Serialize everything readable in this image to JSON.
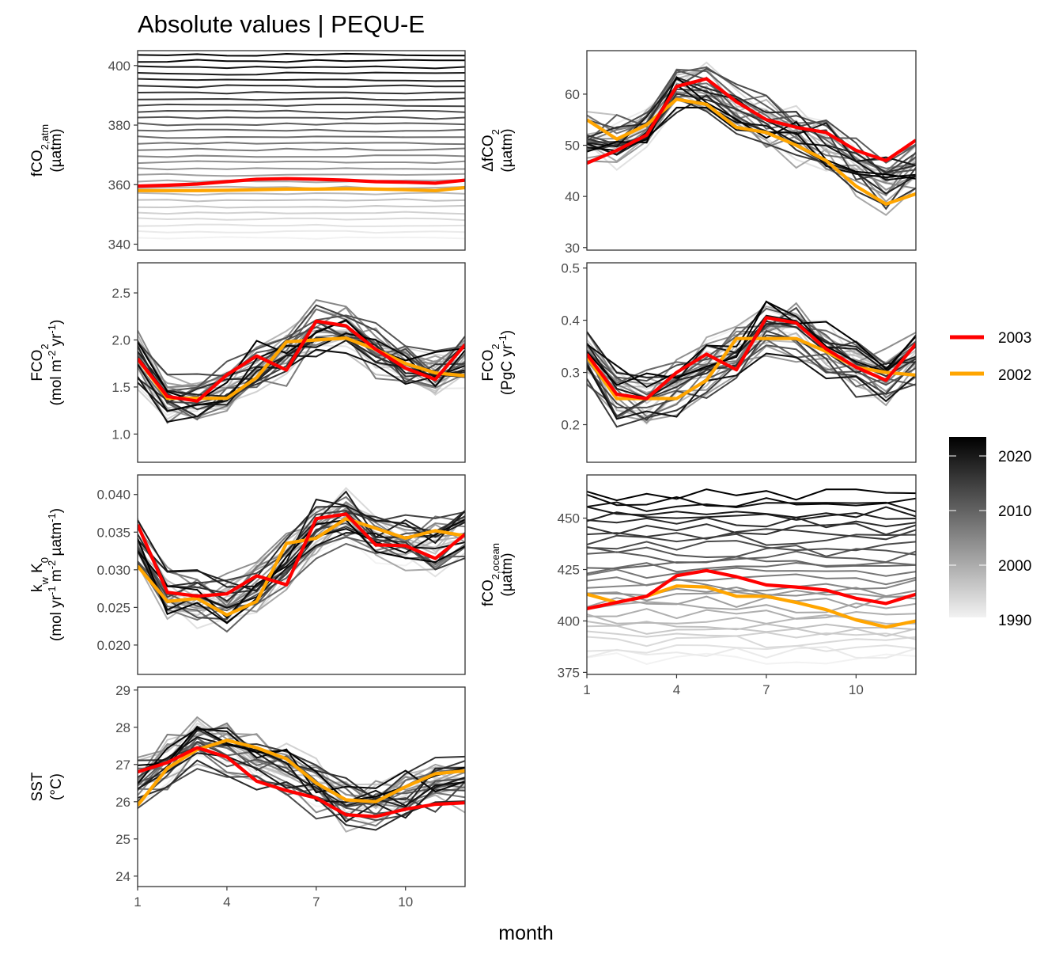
{
  "title": "Absolute values | PEQU-E",
  "xlabel": "month",
  "legend": {
    "highlight": [
      {
        "label": "2003",
        "color": "#ff0000"
      },
      {
        "label": "2002",
        "color": "#ffa500"
      }
    ],
    "colorbar": {
      "ticks": [
        "2020",
        "2010",
        "2000",
        "1990"
      ],
      "range": [
        1990,
        2022
      ],
      "low_color": "#f2f2f2",
      "high_color": "#000000"
    }
  },
  "chart_data": [
    {
      "id": "fco2atm",
      "type": "line",
      "ylabel": [
        "fCO2,atm",
        "(µatm)"
      ],
      "ylim": [
        338,
        405
      ],
      "yticks": [
        340,
        360,
        380,
        400
      ],
      "ytick_labels": [
        "340",
        "360",
        "380",
        "400"
      ],
      "xlim": [
        1,
        12
      ],
      "xticks": [
        1,
        4,
        7,
        10
      ],
      "show_xticks": false,
      "grid": false,
      "series": [
        {
          "name": "2003",
          "values": [
            359.5,
            359.8,
            360.2,
            361.0,
            361.8,
            362.0,
            361.8,
            361.5,
            361.0,
            360.8,
            360.5,
            361.5
          ]
        },
        {
          "name": "2002",
          "values": [
            358.0,
            358.0,
            358.0,
            358.1,
            358.3,
            358.5,
            358.5,
            358.6,
            358.5,
            358.3,
            358.0,
            359.0
          ]
        }
      ]
    },
    {
      "id": "dfco2",
      "type": "line",
      "ylabel": [
        "ΔfCO2",
        "(µatm)"
      ],
      "ylim": [
        29.5,
        68.5
      ],
      "yticks": [
        30,
        40,
        50,
        60
      ],
      "ytick_labels": [
        "30",
        "40",
        "50",
        "60"
      ],
      "xlim": [
        1,
        12
      ],
      "xticks": [
        1,
        4,
        7,
        10
      ],
      "show_xticks": false,
      "grid": false,
      "series": [
        {
          "name": "2003",
          "values": [
            46.5,
            49.0,
            52.0,
            61.5,
            63.0,
            58.5,
            55.0,
            53.5,
            52.5,
            49.0,
            47.0,
            51.0
          ]
        },
        {
          "name": "2002",
          "values": [
            55.0,
            51.2,
            54.0,
            59.0,
            58.0,
            53.5,
            52.5,
            50.0,
            47.0,
            42.0,
            38.5,
            40.5
          ]
        }
      ]
    },
    {
      "id": "fco2flux_area",
      "type": "line",
      "ylabel": [
        "FCO2",
        "(mol m-2 yr-1)"
      ],
      "ylim": [
        0.7,
        2.82
      ],
      "yticks": [
        1.0,
        1.5,
        2.0,
        2.5
      ],
      "ytick_labels": [
        "1.0",
        "1.5",
        "2.0",
        "2.5"
      ],
      "xlim": [
        1,
        12
      ],
      "xticks": [
        1,
        4,
        7,
        10
      ],
      "show_xticks": false,
      "grid": false,
      "series": [
        {
          "name": "2003",
          "values": [
            1.8,
            1.4,
            1.35,
            1.63,
            1.83,
            1.68,
            2.2,
            2.15,
            1.9,
            1.7,
            1.58,
            1.95
          ]
        },
        {
          "name": "2002",
          "values": [
            1.8,
            1.38,
            1.38,
            1.38,
            1.6,
            1.98,
            2.0,
            2.02,
            1.9,
            1.75,
            1.65,
            1.62
          ]
        }
      ]
    },
    {
      "id": "fco2flux_total",
      "type": "line",
      "ylabel": [
        "FCO2",
        "(PgC yr-1)"
      ],
      "ylim": [
        0.128,
        0.51
      ],
      "yticks": [
        0.2,
        0.3,
        0.4,
        0.5
      ],
      "ytick_labels": [
        "0.2",
        "0.3",
        "0.4",
        "0.5"
      ],
      "xlim": [
        1,
        12
      ],
      "xticks": [
        1,
        4,
        7,
        10
      ],
      "show_xticks": false,
      "grid": false,
      "series": [
        {
          "name": "2003",
          "values": [
            0.335,
            0.258,
            0.25,
            0.3,
            0.335,
            0.305,
            0.405,
            0.395,
            0.345,
            0.31,
            0.285,
            0.355
          ]
        },
        {
          "name": "2002",
          "values": [
            0.33,
            0.25,
            0.25,
            0.25,
            0.285,
            0.365,
            0.365,
            0.365,
            0.34,
            0.31,
            0.3,
            0.295
          ]
        }
      ]
    },
    {
      "id": "kwk0",
      "type": "line",
      "ylabel": [
        "kw K0",
        "(mol yr-1 m-2 µatm-1)"
      ],
      "ylim": [
        0.0161,
        0.0426
      ],
      "yticks": [
        0.02,
        0.025,
        0.03,
        0.035,
        0.04
      ],
      "ytick_labels": [
        "0.020",
        "0.025",
        "0.030",
        "0.035",
        "0.040"
      ],
      "xlim": [
        1,
        12
      ],
      "xticks": [
        1,
        4,
        7,
        10
      ],
      "show_xticks": false,
      "grid": false,
      "series": [
        {
          "name": "2003",
          "values": [
            0.036,
            0.027,
            0.0265,
            0.0268,
            0.0292,
            0.028,
            0.0368,
            0.0374,
            0.0333,
            0.0332,
            0.0315,
            0.0347
          ]
        },
        {
          "name": "2002",
          "values": [
            0.0305,
            0.0258,
            0.0262,
            0.024,
            0.0258,
            0.0335,
            0.0342,
            0.0368,
            0.0355,
            0.0342,
            0.0352,
            0.0345
          ]
        }
      ]
    },
    {
      "id": "fco2ocean",
      "type": "line",
      "ylabel": [
        "fCO2,ocean",
        "(µatm)"
      ],
      "ylim": [
        374,
        471
      ],
      "yticks": [
        375,
        400,
        425,
        450
      ],
      "ytick_labels": [
        "375",
        "400",
        "425",
        "450"
      ],
      "xlim": [
        1,
        12
      ],
      "xticks": [
        1,
        4,
        7,
        10
      ],
      "xtick_labels": [
        "1",
        "4",
        "7",
        "10"
      ],
      "show_xticks": true,
      "grid": false,
      "series": [
        {
          "name": "2003",
          "values": [
            406.0,
            409.0,
            412.0,
            422.0,
            424.5,
            421.5,
            417.5,
            416.5,
            415.0,
            411.0,
            408.5,
            413.0
          ]
        },
        {
          "name": "2002",
          "values": [
            413.0,
            409.0,
            412.0,
            417.0,
            416.5,
            412.0,
            412.0,
            409.0,
            405.5,
            400.5,
            397.0,
            400.0
          ]
        }
      ]
    },
    {
      "id": "sst",
      "type": "line",
      "ylabel": [
        "SST",
        "(°C)"
      ],
      "ylim": [
        23.72,
        29.08
      ],
      "yticks": [
        24,
        25,
        26,
        27,
        28,
        29
      ],
      "ytick_labels": [
        "24",
        "25",
        "26",
        "27",
        "28",
        "29"
      ],
      "xlim": [
        1,
        12
      ],
      "xticks": [
        1,
        4,
        7,
        10
      ],
      "xtick_labels": [
        "1",
        "4",
        "7",
        "10"
      ],
      "show_xticks": true,
      "grid": false,
      "series": [
        {
          "name": "2003",
          "values": [
            26.8,
            27.05,
            27.45,
            27.2,
            26.55,
            26.3,
            26.1,
            25.65,
            25.6,
            25.8,
            25.93,
            25.97
          ]
        },
        {
          "name": "2002",
          "values": [
            25.9,
            26.9,
            27.4,
            27.65,
            27.45,
            27.15,
            26.5,
            26.05,
            26.0,
            26.4,
            26.75,
            26.83
          ]
        }
      ]
    }
  ]
}
